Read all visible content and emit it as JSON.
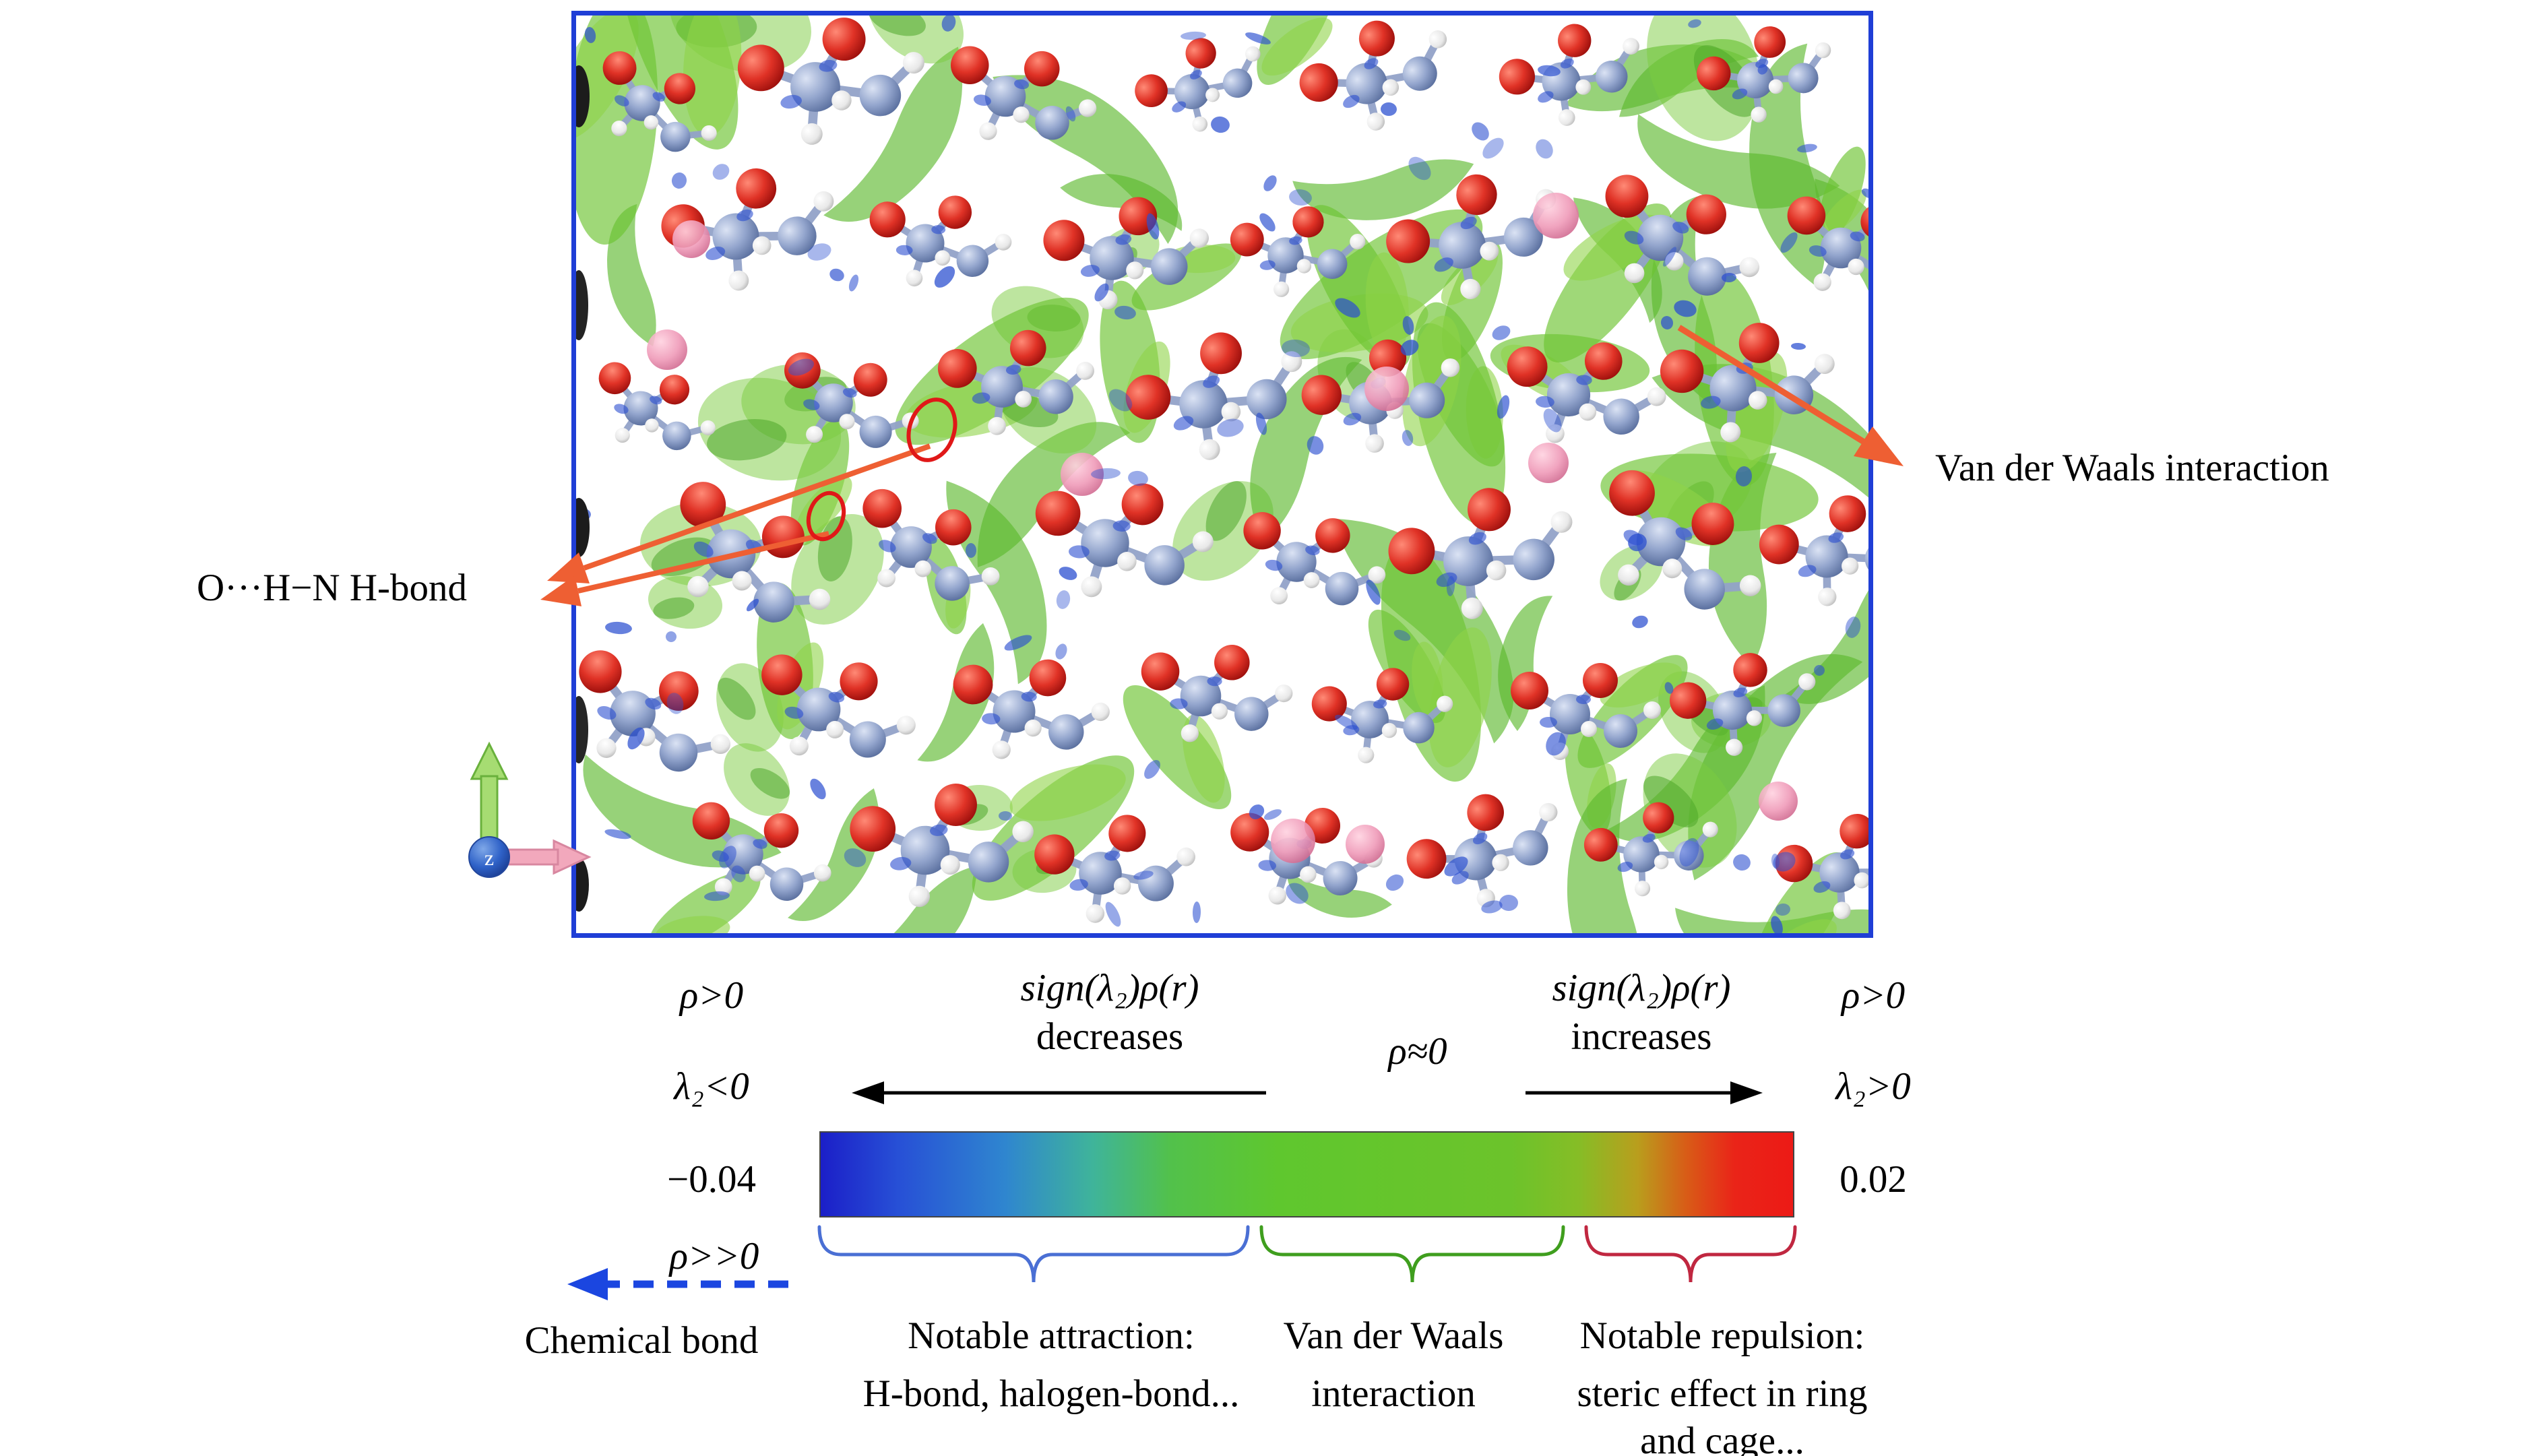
{
  "annotations": {
    "vdw": "Van der Waals interaction",
    "hbond": "O···H−N H-bond",
    "axis_z": "z"
  },
  "colorbar": {
    "left": {
      "rho": "ρ>0",
      "lambda2": "λ₂<0",
      "min_value": "−0.04",
      "rho_much_greater": "ρ>>0",
      "chemical_bond": "Chemical bond"
    },
    "right": {
      "rho": "ρ>0",
      "lambda2": "λ₂>0",
      "max_value": "0.02"
    },
    "center": {
      "rho_approx": "ρ≈0"
    },
    "decrease": {
      "line1": "sign(λ₂)ρ(r)",
      "line2": "decreases"
    },
    "increase": {
      "line1": "sign(λ₂)ρ(r)",
      "line2": "increases"
    },
    "range": [
      -0.04,
      0.02
    ],
    "gradient_colors": [
      "#1b1fc8",
      "#2750d6",
      "#2f86cf",
      "#3fb49a",
      "#52c14b",
      "#5fc72e",
      "#66c52c",
      "#6cc32b",
      "#86bd26",
      "#b99e1d",
      "#d85c17",
      "#ea2418",
      "#ec1a16"
    ],
    "regions": [
      {
        "name": "attraction",
        "brace_color": "#4a6fd4",
        "line1": "Notable attraction:",
        "line2": "H-bond, halogen-bond...",
        "line3": ""
      },
      {
        "name": "vdw",
        "brace_color": "#3f9e1e",
        "line1": "Van der Waals",
        "line2": "interaction",
        "line3": ""
      },
      {
        "name": "repulsion",
        "brace_color": "#c02740",
        "line1": "Notable repulsion:",
        "line2": "steric effect in ring",
        "line3": "and cage..."
      }
    ]
  },
  "panel": {
    "border_color": "#1f3ed6"
  },
  "arrow_colors": {
    "annotation_orange": "#ee5f33",
    "chemical_bond_blue": "#1b46e0",
    "axis_green": "#a6dc72",
    "axis_pink": "#f2a8bc",
    "axis_blue": "#2f62c8",
    "hbond_circle_red": "#e01818"
  }
}
